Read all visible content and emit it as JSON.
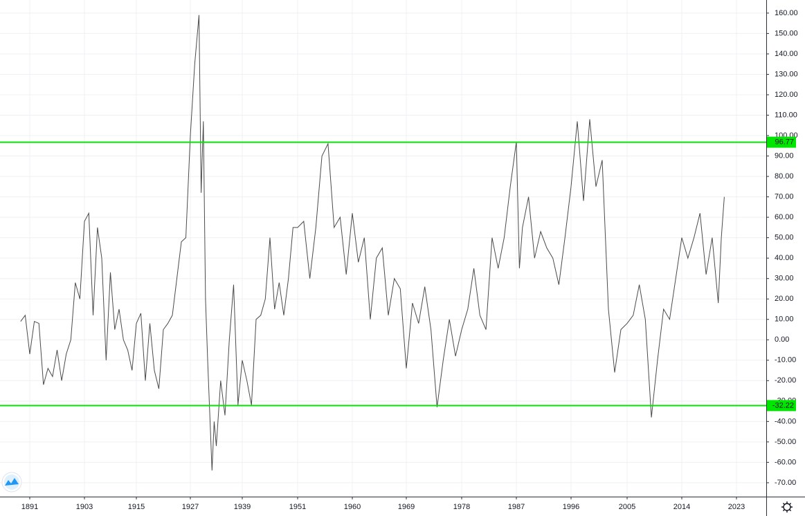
{
  "chart_data": {
    "type": "line",
    "color": "#4a4a4a",
    "grid": true,
    "x": [
      1889,
      1890,
      1891,
      1892,
      1893,
      1894,
      1895,
      1896,
      1897,
      1898,
      1899,
      1900,
      1901,
      1902,
      1903,
      1904,
      1905,
      1906,
      1907,
      1908,
      1909,
      1910,
      1911,
      1912,
      1913,
      1914,
      1915,
      1916,
      1917,
      1918,
      1919,
      1920,
      1921,
      1922,
      1923,
      1924,
      1925,
      1926,
      1927,
      1928,
      1929,
      1929.5,
      1930,
      1930.5,
      1931,
      1932,
      1932.5,
      1933,
      1934,
      1935,
      1936,
      1937,
      1938,
      1939,
      1940,
      1941,
      1942,
      1943,
      1944,
      1945,
      1946,
      1947,
      1948,
      1949,
      1950,
      1951,
      1952,
      1953,
      1954,
      1955,
      1956,
      1957,
      1958,
      1959,
      1960,
      1961,
      1962,
      1963,
      1964,
      1965,
      1966,
      1967,
      1968,
      1969,
      1970,
      1971,
      1972,
      1973,
      1974,
      1975,
      1976,
      1977,
      1978,
      1979,
      1980,
      1981,
      1982,
      1983,
      1984,
      1985,
      1986,
      1987,
      1987.5,
      1988,
      1989,
      1990,
      1991,
      1992,
      1993,
      1994,
      1995,
      1996,
      1997,
      1998,
      1999,
      2000,
      2001,
      2002,
      2003,
      2004,
      2005,
      2006,
      2007,
      2008,
      2009,
      2010,
      2011,
      2012,
      2013,
      2014,
      2015,
      2016,
      2017,
      2018,
      2019,
      2020,
      2020.5,
      2021
    ],
    "values": [
      9,
      12,
      -7,
      9,
      8,
      -22,
      -14,
      -18,
      -5,
      -20,
      -7,
      0,
      28,
      20,
      58,
      62,
      12,
      55,
      40,
      -10,
      33,
      5,
      15,
      0,
      -5,
      -15,
      8,
      13,
      -20,
      8,
      -15,
      -24,
      5,
      8,
      12,
      30,
      48,
      50,
      100,
      135,
      159,
      72,
      107,
      20,
      -10,
      -64,
      -40,
      -52,
      -20,
      -37,
      0,
      27,
      -32,
      -10,
      -20,
      -32,
      10,
      12,
      20,
      50,
      15,
      28,
      12,
      30,
      55,
      55,
      58,
      30,
      55,
      90,
      96,
      55,
      60,
      32,
      62,
      38,
      50,
      10,
      40,
      45,
      12,
      30,
      25,
      -14,
      18,
      8,
      26,
      5,
      -33,
      -10,
      10,
      -8,
      5,
      15,
      35,
      12,
      5,
      50,
      35,
      50,
      75,
      97,
      35,
      55,
      70,
      40,
      53,
      45,
      40,
      27,
      50,
      75,
      107,
      68,
      108,
      75,
      88,
      15,
      -16,
      5,
      8,
      12,
      27,
      10,
      -38,
      -10,
      15,
      10,
      30,
      50,
      40,
      50,
      62,
      32,
      50,
      18,
      50,
      70
    ],
    "xlim": [
      1884.5,
      2028
    ],
    "xticks": [
      1891,
      1903,
      1915,
      1927,
      1939,
      1951,
      1960,
      1969,
      1978,
      1987,
      1996,
      2005,
      2014,
      2023
    ],
    "ylim": [
      -76.8,
      166.4
    ],
    "yticks": [
      {
        "value": 160,
        "label": "160.00"
      },
      {
        "value": 150,
        "label": "150.00"
      },
      {
        "value": 140,
        "label": "140.00"
      },
      {
        "value": 130,
        "label": "130.00"
      },
      {
        "value": 120,
        "label": "120.00"
      },
      {
        "value": 110,
        "label": "110.00"
      },
      {
        "value": 100,
        "label": "100.00"
      },
      {
        "value": 90,
        "label": "90.00"
      },
      {
        "value": 80,
        "label": "80.00"
      },
      {
        "value": 70,
        "label": "70.00"
      },
      {
        "value": 60,
        "label": "60.00"
      },
      {
        "value": 50,
        "label": "50.00"
      },
      {
        "value": 40,
        "label": "40.00"
      },
      {
        "value": 30,
        "label": "30.00"
      },
      {
        "value": 20,
        "label": "20.00"
      },
      {
        "value": 10,
        "label": "10.00"
      },
      {
        "value": 0,
        "label": "0.00"
      },
      {
        "value": -10,
        "label": "-10.00"
      },
      {
        "value": -20,
        "label": "-20.00"
      },
      {
        "value": -30,
        "label": "-30.00"
      },
      {
        "value": -40,
        "label": "-40.00"
      },
      {
        "value": -50,
        "label": "-50.00"
      },
      {
        "value": -60,
        "label": "-60.00"
      },
      {
        "value": -70,
        "label": "-70.00"
      }
    ],
    "hlines": [
      {
        "value": 96.77,
        "color": "#00e600"
      },
      {
        "value": -32.22,
        "color": "#00e600"
      }
    ]
  }
}
